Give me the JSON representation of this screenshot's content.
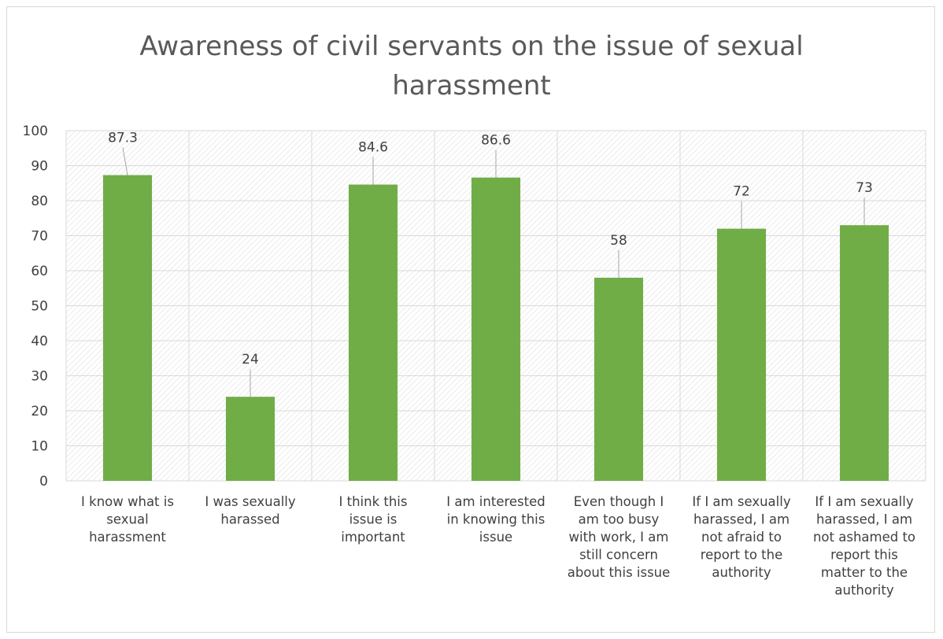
{
  "chart_data": {
    "type": "bar",
    "title": "Awareness of civil servants on the issue of sexual harassment",
    "title_lines": [
      "Awareness of civil servants on the issue of sexual",
      "harassment"
    ],
    "categories": [
      "I know what is sexual harassment",
      "I was sexually harassed",
      "I think this issue is important",
      "I am interested in knowing this issue",
      "Even though I am too busy with work, I am still concern about this issue",
      "If I am sexually harassed, I am not afraid to report to the authority",
      "If I am sexually harassed, I am not ashamed to report this matter to the authority"
    ],
    "category_lines": [
      [
        "I know what is",
        "sexual",
        "harassment"
      ],
      [
        "I was sexually",
        "harassed"
      ],
      [
        "I think this",
        "issue is",
        "important"
      ],
      [
        "I am interested",
        "in knowing this",
        "issue"
      ],
      [
        "Even though I",
        "am too busy",
        "with work, I am",
        "still concern",
        "about this issue"
      ],
      [
        "If I am sexually",
        "harassed, I am",
        "not afraid to",
        "report to the",
        "authority"
      ],
      [
        "If I am sexually",
        "harassed, I am",
        "not ashamed to",
        "report this",
        "matter to the",
        "authority"
      ]
    ],
    "values": [
      87.3,
      24,
      84.6,
      86.6,
      58,
      72,
      73
    ],
    "value_labels": [
      "87.3",
      "24",
      "84.6",
      "86.6",
      "58",
      "72",
      "73"
    ],
    "ylim": [
      0,
      100
    ],
    "yticks": [
      0,
      10,
      20,
      30,
      40,
      50,
      60,
      70,
      80,
      90,
      100
    ],
    "xlabel": "",
    "ylabel": "",
    "grid": true,
    "legend": "none",
    "colors": {
      "bar": "#70ad47",
      "grid": "#d9d9d9",
      "hatch": "#d9d9d9",
      "text": "#404040",
      "title": "#595959"
    }
  }
}
